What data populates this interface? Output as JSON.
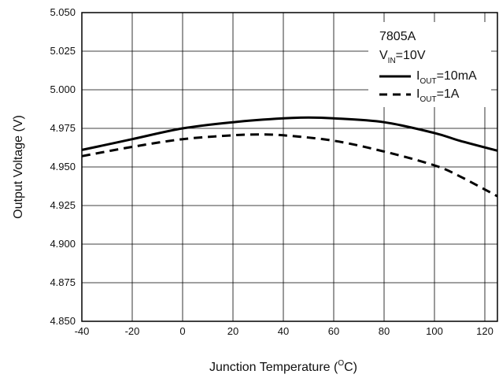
{
  "chart_data": {
    "type": "line",
    "xlabel": "Junction Temperature (°C)",
    "xlabel_parts": {
      "pre": "Junction Temperature (",
      "sup": "O",
      "post": "C)"
    },
    "ylabel": "Output Voltage (V)",
    "xlim": [
      -40,
      125
    ],
    "ylim": [
      4.85,
      5.05
    ],
    "x_ticks": [
      -40,
      -20,
      0,
      20,
      40,
      60,
      80,
      100,
      120
    ],
    "x_tick_labels": [
      "-40",
      "-20",
      "0",
      "20",
      "40",
      "60",
      "80",
      "100",
      "120"
    ],
    "y_ticks": [
      4.85,
      4.875,
      4.9,
      4.925,
      4.95,
      4.975,
      5.0,
      5.025,
      5.05
    ],
    "y_tick_labels": [
      "4.850",
      "4.875",
      "4.900",
      "4.925",
      "4.950",
      "4.975",
      "5.000",
      "5.025",
      "5.050"
    ],
    "grid": true,
    "legend_position": "top-right",
    "legend_header": [
      "7805A",
      "VIN=10V"
    ],
    "legend_header_parts": {
      "title": "7805A",
      "v": "V",
      "v_sub": "IN",
      "v_post": "=10V"
    },
    "series": [
      {
        "name": "IOUT=10mA",
        "label_parts": {
          "main": "I",
          "sub": "OUT",
          "post": "=10mA"
        },
        "style": "solid",
        "color": "#000000",
        "x": [
          -40,
          -20,
          0,
          20,
          40,
          50,
          60,
          80,
          100,
          110,
          125
        ],
        "values": [
          4.961,
          4.968,
          4.975,
          4.979,
          4.9815,
          4.982,
          4.9815,
          4.979,
          4.972,
          4.967,
          4.9605
        ]
      },
      {
        "name": "IOUT=1A",
        "label_parts": {
          "main": "I",
          "sub": "OUT",
          "post": "=1A"
        },
        "style": "dashed",
        "color": "#000000",
        "x": [
          -40,
          -20,
          0,
          20,
          30,
          40,
          60,
          80,
          100,
          110,
          125
        ],
        "values": [
          4.957,
          4.963,
          4.968,
          4.9705,
          4.971,
          4.9705,
          4.967,
          4.96,
          4.951,
          4.944,
          4.931
        ]
      }
    ]
  }
}
